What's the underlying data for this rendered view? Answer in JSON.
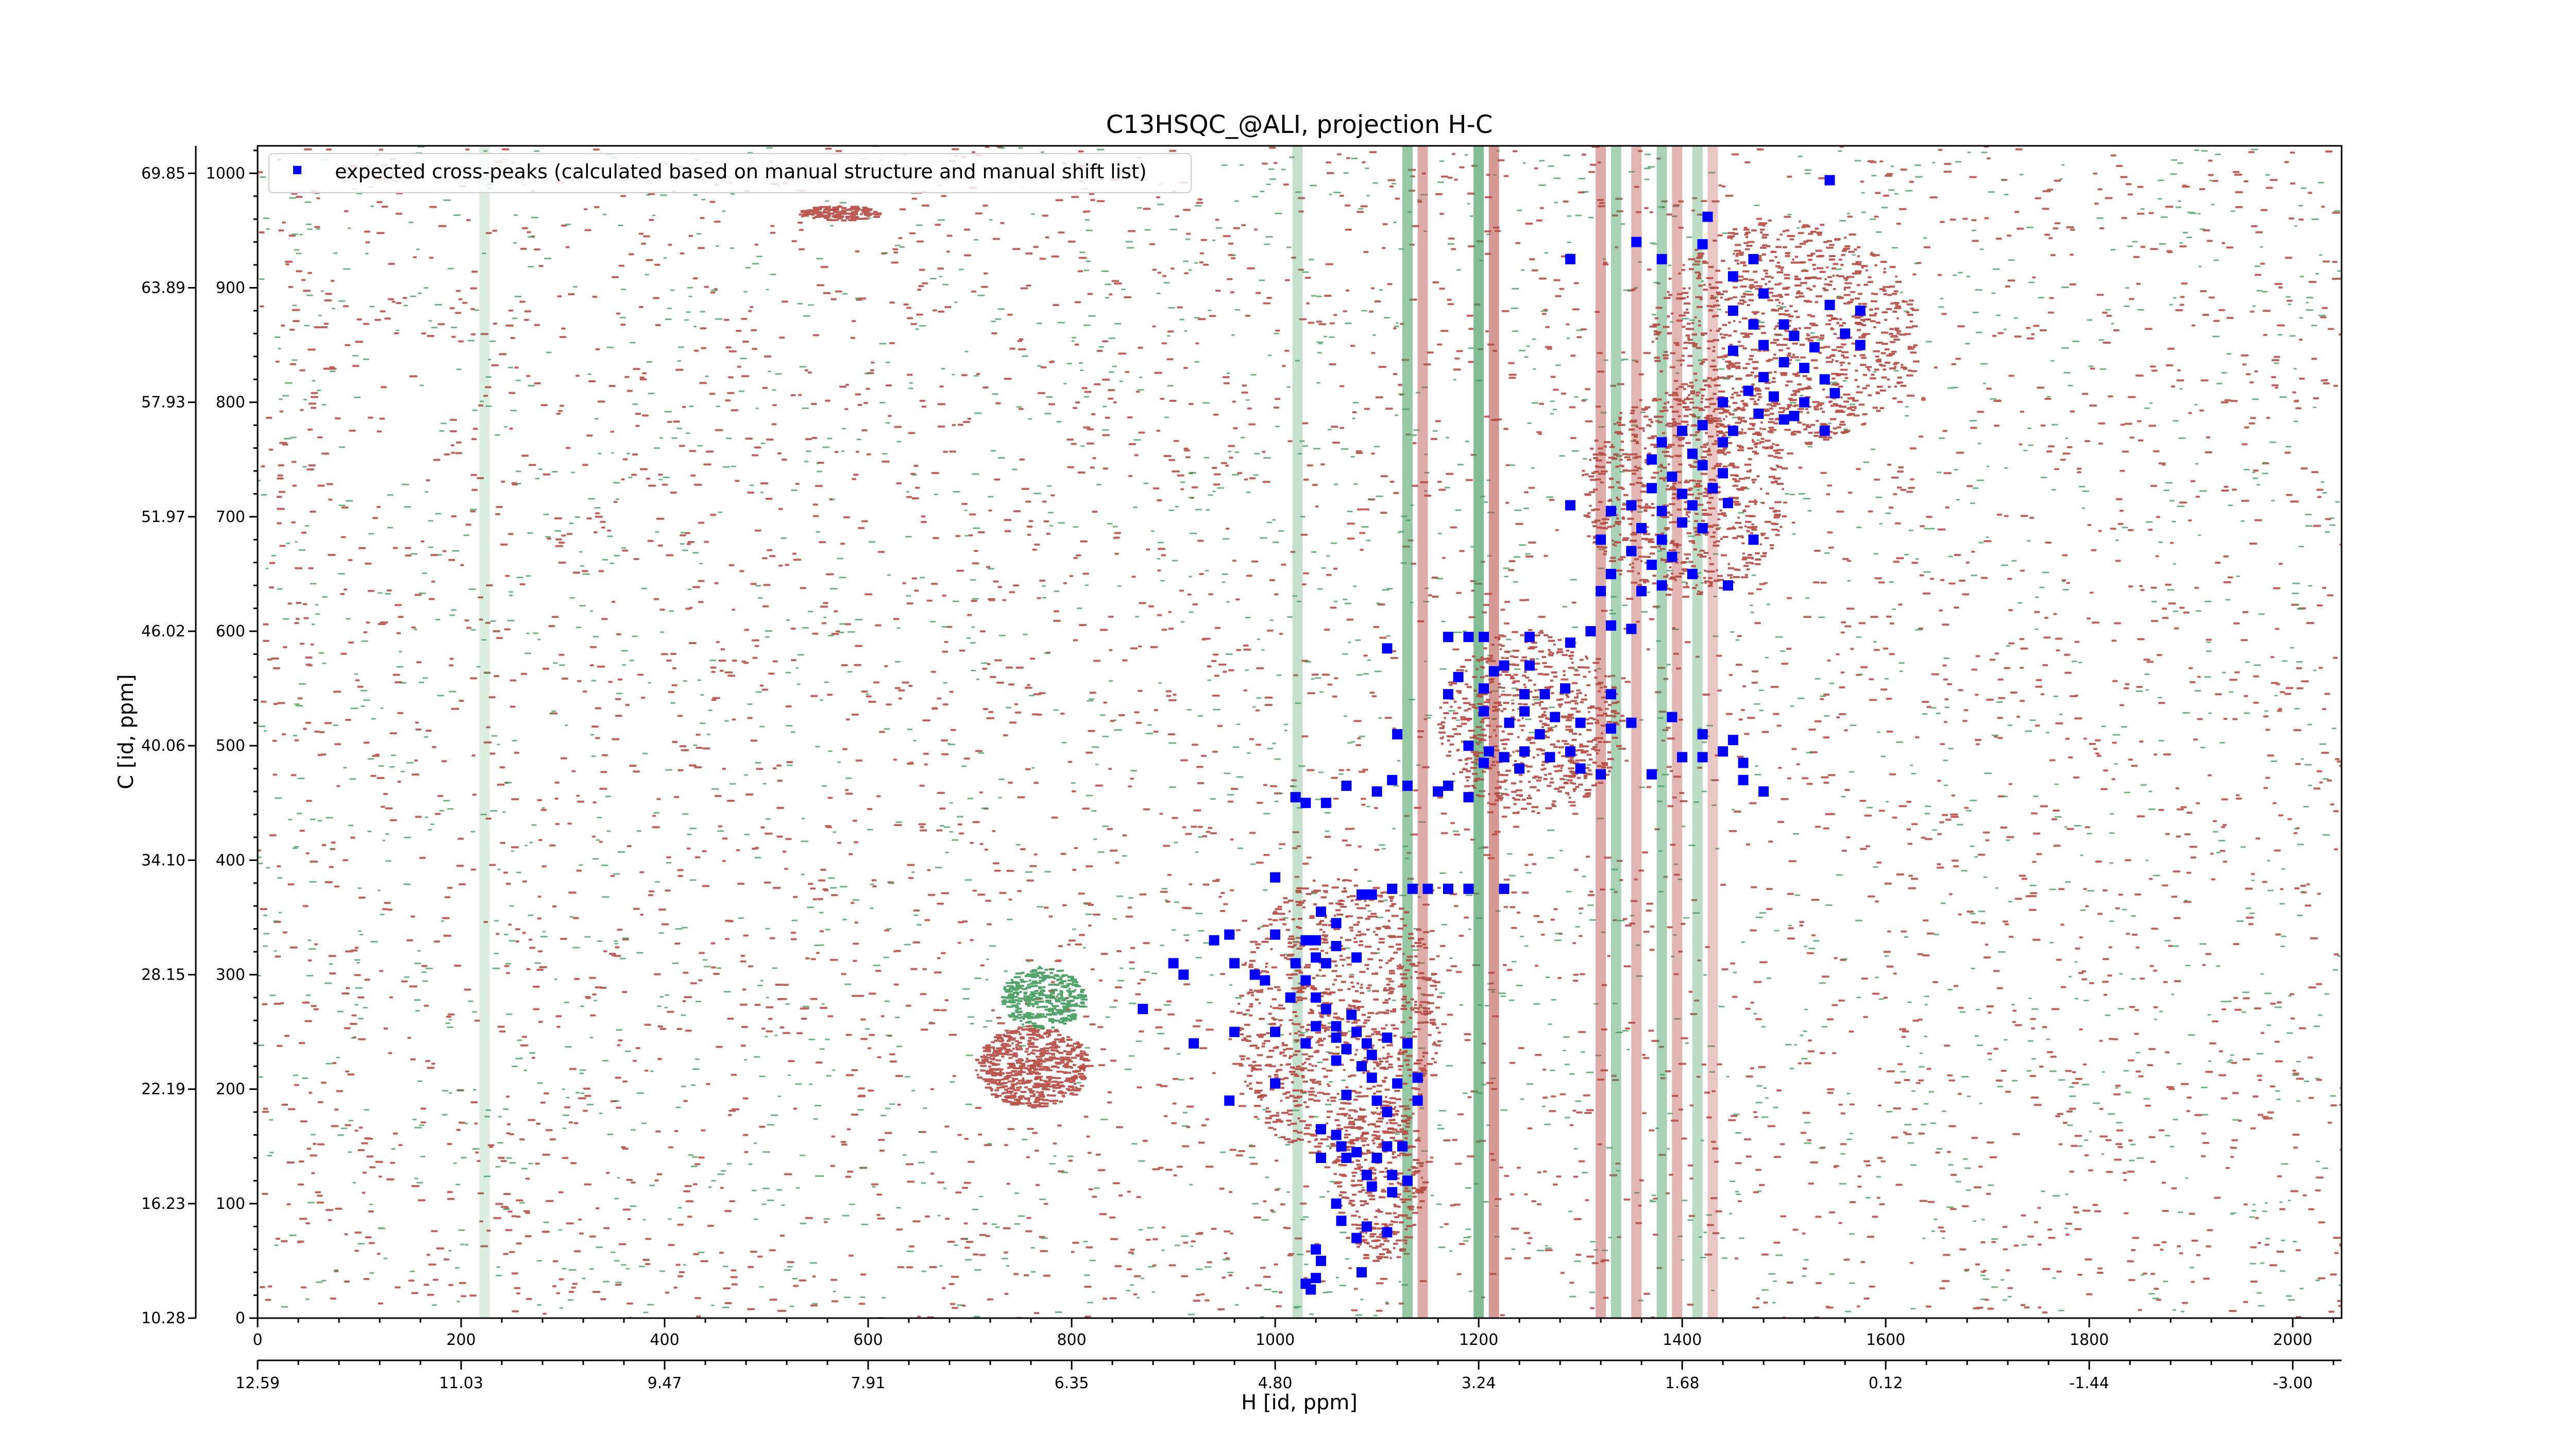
{
  "chart_data": {
    "type": "scatter",
    "title": "C13HSQC_@ALI, projection H-C",
    "xlabel": "H [id, ppm]",
    "ylabel": "C [id, ppm]",
    "xlim": [
      0,
      2048
    ],
    "ylim": [
      0,
      1024
    ],
    "x_ticks": [
      0,
      200,
      400,
      600,
      800,
      1000,
      1200,
      1400,
      1600,
      1800,
      2000
    ],
    "y_ticks": [
      0,
      100,
      200,
      300,
      400,
      500,
      600,
      700,
      800,
      900,
      1000
    ],
    "x_ppm_labels": [
      "12.59",
      "11.03",
      "9.47",
      "7.91",
      "6.35",
      "4.80",
      "3.24",
      "1.68",
      "0.12",
      "-1.44",
      "-3.00"
    ],
    "y_ppm_labels": [
      "10.28",
      "16.23",
      "22.19",
      "28.15",
      "34.10",
      "40.06",
      "46.02",
      "51.97",
      "57.93",
      "63.89",
      "69.85"
    ],
    "legend": {
      "placement": "top-left",
      "label": "expected cross-peaks (calculated based on manual structure and manual shift list)"
    },
    "grid": false,
    "colors": {
      "expected": "#0000ff",
      "positive_contour": "#b5473f",
      "negative_contour": "#3f9a5a"
    },
    "series": [
      {
        "name": "expected cross-peaks (calculated based on manual structure and manual shift list)",
        "points": [
          [
            1545,
            994
          ],
          [
            1425,
            962
          ],
          [
            1355,
            940
          ],
          [
            1420,
            938
          ],
          [
            1470,
            925
          ],
          [
            1380,
            925
          ],
          [
            1290,
            925
          ],
          [
            1450,
            910
          ],
          [
            1480,
            895
          ],
          [
            1545,
            885
          ],
          [
            1575,
            880
          ],
          [
            1450,
            880
          ],
          [
            1500,
            868
          ],
          [
            1470,
            868
          ],
          [
            1560,
            860
          ],
          [
            1510,
            858
          ],
          [
            1575,
            850
          ],
          [
            1530,
            848
          ],
          [
            1480,
            850
          ],
          [
            1450,
            845
          ],
          [
            1500,
            835
          ],
          [
            1520,
            830
          ],
          [
            1480,
            822
          ],
          [
            1540,
            820
          ],
          [
            1550,
            808
          ],
          [
            1465,
            810
          ],
          [
            1490,
            805
          ],
          [
            1520,
            800
          ],
          [
            1440,
            800
          ],
          [
            1510,
            788
          ],
          [
            1475,
            790
          ],
          [
            1540,
            775
          ],
          [
            1500,
            785
          ],
          [
            1450,
            775
          ],
          [
            1420,
            780
          ],
          [
            1400,
            775
          ],
          [
            1380,
            765
          ],
          [
            1440,
            765
          ],
          [
            1410,
            755
          ],
          [
            1370,
            750
          ],
          [
            1420,
            745
          ],
          [
            1440,
            738
          ],
          [
            1390,
            735
          ],
          [
            1400,
            720
          ],
          [
            1370,
            725
          ],
          [
            1430,
            725
          ],
          [
            1350,
            710
          ],
          [
            1330,
            705
          ],
          [
            1290,
            710
          ],
          [
            1410,
            710
          ],
          [
            1445,
            712
          ],
          [
            1380,
            705
          ],
          [
            1360,
            690
          ],
          [
            1400,
            695
          ],
          [
            1320,
            680
          ],
          [
            1380,
            680
          ],
          [
            1420,
            690
          ],
          [
            1470,
            680
          ],
          [
            1350,
            670
          ],
          [
            1390,
            665
          ],
          [
            1370,
            658
          ],
          [
            1410,
            650
          ],
          [
            1330,
            650
          ],
          [
            1380,
            640
          ],
          [
            1445,
            640
          ],
          [
            1360,
            635
          ],
          [
            1320,
            635
          ],
          [
            1310,
            600
          ],
          [
            1330,
            605
          ],
          [
            1350,
            602
          ],
          [
            1290,
            590
          ],
          [
            1250,
            595
          ],
          [
            1205,
            595
          ],
          [
            1190,
            595
          ],
          [
            1170,
            595
          ],
          [
            1110,
            585
          ],
          [
            1215,
            565
          ],
          [
            1180,
            560
          ],
          [
            1225,
            570
          ],
          [
            1250,
            570
          ],
          [
            1205,
            550
          ],
          [
            1245,
            545
          ],
          [
            1265,
            545
          ],
          [
            1285,
            550
          ],
          [
            1330,
            545
          ],
          [
            1170,
            545
          ],
          [
            1205,
            530
          ],
          [
            1245,
            530
          ],
          [
            1230,
            520
          ],
          [
            1275,
            525
          ],
          [
            1260,
            510
          ],
          [
            1300,
            520
          ],
          [
            1330,
            515
          ],
          [
            1350,
            520
          ],
          [
            1390,
            525
          ],
          [
            1420,
            510
          ],
          [
            1420,
            490
          ],
          [
            1440,
            495
          ],
          [
            1120,
            510
          ],
          [
            1190,
            500
          ],
          [
            1210,
            495
          ],
          [
            1225,
            490
          ],
          [
            1245,
            495
          ],
          [
            1270,
            490
          ],
          [
            1290,
            495
          ],
          [
            1205,
            485
          ],
          [
            1240,
            480
          ],
          [
            1300,
            480
          ],
          [
            1320,
            475
          ],
          [
            1370,
            475
          ],
          [
            1400,
            490
          ],
          [
            1450,
            505
          ],
          [
            1460,
            485
          ],
          [
            1460,
            470
          ],
          [
            1480,
            460
          ],
          [
            1100,
            460
          ],
          [
            1070,
            465
          ],
          [
            1115,
            470
          ],
          [
            1130,
            465
          ],
          [
            1160,
            460
          ],
          [
            1170,
            465
          ],
          [
            1190,
            455
          ],
          [
            1050,
            450
          ],
          [
            1030,
            450
          ],
          [
            1020,
            455
          ],
          [
            1000,
            385
          ],
          [
            1085,
            370
          ],
          [
            1095,
            370
          ],
          [
            1115,
            375
          ],
          [
            1135,
            375
          ],
          [
            1150,
            375
          ],
          [
            1170,
            375
          ],
          [
            1190,
            375
          ],
          [
            1225,
            375
          ],
          [
            1045,
            355
          ],
          [
            1000,
            335
          ],
          [
            1030,
            330
          ],
          [
            1060,
            345
          ],
          [
            1040,
            330
          ],
          [
            1060,
            325
          ],
          [
            955,
            335
          ],
          [
            940,
            330
          ],
          [
            900,
            310
          ],
          [
            910,
            300
          ],
          [
            960,
            310
          ],
          [
            980,
            300
          ],
          [
            990,
            295
          ],
          [
            1020,
            310
          ],
          [
            1040,
            315
          ],
          [
            1050,
            310
          ],
          [
            1080,
            315
          ],
          [
            1015,
            280
          ],
          [
            1030,
            295
          ],
          [
            1040,
            280
          ],
          [
            1050,
            270
          ],
          [
            1075,
            265
          ],
          [
            1060,
            255
          ],
          [
            1040,
            255
          ],
          [
            1080,
            250
          ],
          [
            1060,
            245
          ],
          [
            1090,
            240
          ],
          [
            1110,
            245
          ],
          [
            1130,
            240
          ],
          [
            1095,
            230
          ],
          [
            1070,
            235
          ],
          [
            1060,
            225
          ],
          [
            1085,
            220
          ],
          [
            1095,
            210
          ],
          [
            1120,
            205
          ],
          [
            1140,
            210
          ],
          [
            870,
            270
          ],
          [
            960,
            250
          ],
          [
            1000,
            250
          ],
          [
            1030,
            240
          ],
          [
            920,
            240
          ],
          [
            1000,
            205
          ],
          [
            1070,
            195
          ],
          [
            1100,
            190
          ],
          [
            1140,
            190
          ],
          [
            1110,
            180
          ],
          [
            955,
            190
          ],
          [
            1045,
            165
          ],
          [
            1060,
            160
          ],
          [
            1065,
            150
          ],
          [
            1080,
            145
          ],
          [
            1110,
            150
          ],
          [
            1125,
            150
          ],
          [
            1100,
            140
          ],
          [
            1090,
            125
          ],
          [
            1115,
            125
          ],
          [
            1130,
            120
          ],
          [
            1095,
            115
          ],
          [
            1115,
            110
          ],
          [
            1045,
            140
          ],
          [
            1070,
            140
          ],
          [
            1060,
            100
          ],
          [
            1065,
            85
          ],
          [
            1090,
            80
          ],
          [
            1110,
            75
          ],
          [
            1080,
            70
          ],
          [
            1040,
            60
          ],
          [
            1045,
            50
          ],
          [
            1085,
            40
          ],
          [
            1030,
            30
          ],
          [
            1040,
            35
          ],
          [
            1035,
            25
          ]
        ]
      }
    ]
  }
}
